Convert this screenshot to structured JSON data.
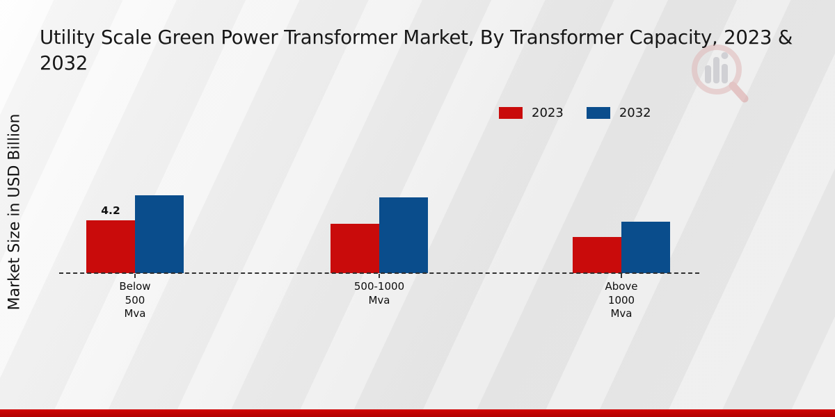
{
  "page": {
    "title": "Utility Scale Green Power Transformer Market, By Transformer Capacity, 2023 & 2032",
    "ylabel": "Market Size in USD Billion"
  },
  "legend": [
    {
      "label": "2023",
      "color": "#c90b0b"
    },
    {
      "label": "2032",
      "color": "#0a4d8c"
    }
  ],
  "chart_data": {
    "type": "bar",
    "title": "Utility Scale Green Power Transformer Market, By Transformer Capacity, 2023 & 2032",
    "xlabel": "",
    "ylabel": "Market Size in USD Billion",
    "categories": [
      "Below\n500\nMva",
      "500-1000\nMva",
      "Above\n1000\nMva"
    ],
    "series": [
      {
        "name": "2023",
        "color": "#c90b0b",
        "values": [
          4.2,
          3.9,
          2.9
        ]
      },
      {
        "name": "2032",
        "color": "#0a4d8c",
        "values": [
          6.2,
          6.0,
          4.1
        ]
      }
    ],
    "annotations": [
      {
        "series": "2023",
        "category_index": 0,
        "text": "4.2"
      }
    ],
    "ylim": [
      0,
      7
    ],
    "grid": false,
    "baseline_style": "dashed",
    "legend_position": "upper-right"
  },
  "footer": {
    "accent_color": "#c00000"
  }
}
